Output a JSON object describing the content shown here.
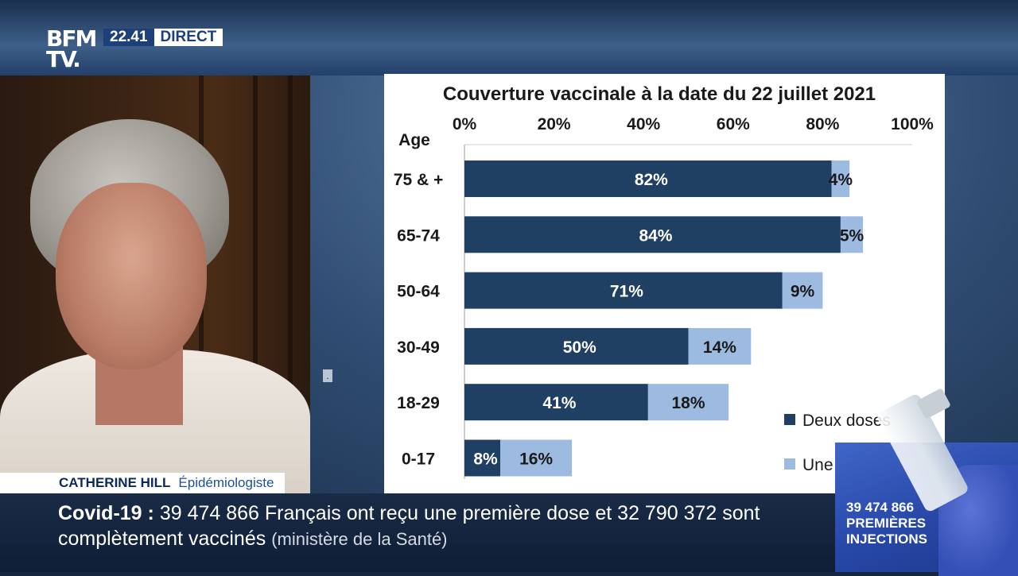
{
  "header": {
    "logo_line1": "BFM",
    "logo_line2": "TV.",
    "time": "22.41",
    "live_label": "DIRECT"
  },
  "guest": {
    "name": "CATHERINE HILL",
    "role": "Épidémiologiste"
  },
  "ticker": {
    "keyword": "Covid-19",
    "separator": ":",
    "text": "39 474 866 Français ont reçu une première dose et 32 790 372 sont complètement vaccinés",
    "source": "(ministère de la Santé)"
  },
  "side_box": {
    "count": "39 474 866",
    "line2": "PREMIÈRES",
    "line3": "INJECTIONS"
  },
  "colors": {
    "dark_bar": "#1f3f63",
    "light_bar": "#9dbbe0",
    "axis_text": "#1a1a1a"
  },
  "chart_data": {
    "type": "bar",
    "orientation": "horizontal",
    "stacked": true,
    "title": "Couverture vaccinale à la date du 22 juillet 2021",
    "category_axis_label": "Age",
    "categories": [
      "75 & +",
      "65-74",
      "50-64",
      "30-49",
      "18-29",
      "0-17"
    ],
    "series": [
      {
        "name": "Deux doses",
        "values": [
          82,
          84,
          71,
          50,
          41,
          8
        ],
        "labels": [
          "82%",
          "84%",
          "71%",
          "50%",
          "41%",
          "8%"
        ],
        "color": "#1f3f63"
      },
      {
        "name": "Une",
        "values": [
          4,
          5,
          9,
          14,
          18,
          16
        ],
        "labels": [
          "4%",
          "5%",
          "9%",
          "14%",
          "18%",
          "16%"
        ],
        "color": "#9dbbe0"
      }
    ],
    "value_axis": {
      "position": "top",
      "range": [
        0,
        100
      ],
      "ticks": [
        0,
        20,
        40,
        60,
        80,
        100
      ],
      "tick_labels": [
        "0%",
        "20%",
        "40%",
        "60%",
        "80%",
        "100%"
      ]
    },
    "legend_position": "bottom-right",
    "grid": false
  }
}
